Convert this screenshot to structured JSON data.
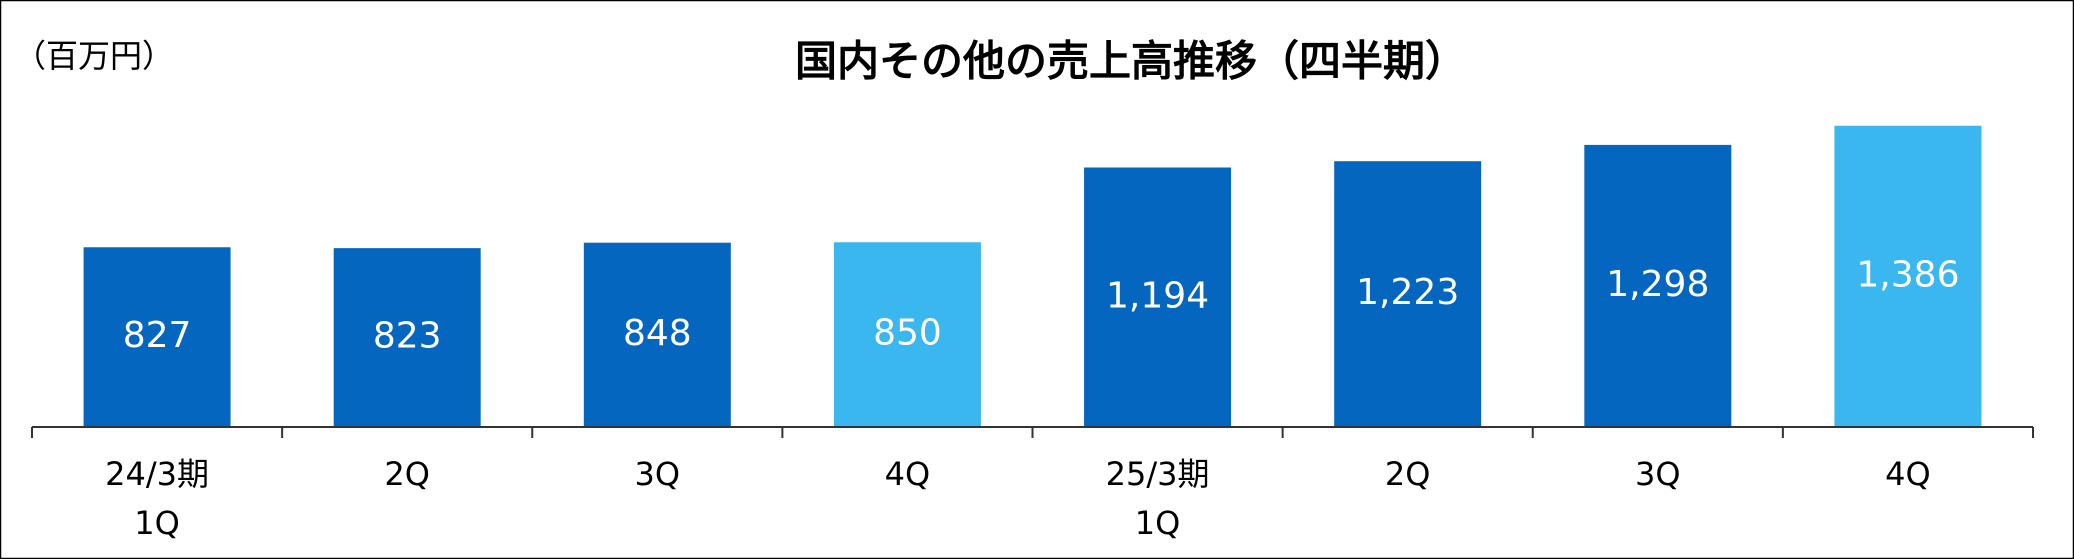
{
  "chart_data": {
    "type": "bar",
    "title": "国内その他の売上高推移（四半期）",
    "unit_label": "（百万円）",
    "categories": [
      [
        "24/3期",
        "1Q"
      ],
      [
        "2Q"
      ],
      [
        "3Q"
      ],
      [
        "4Q"
      ],
      [
        "25/3期",
        "1Q"
      ],
      [
        "2Q"
      ],
      [
        "3Q"
      ],
      [
        "4Q"
      ]
    ],
    "values": [
      827,
      823,
      848,
      850,
      1194,
      1223,
      1298,
      1386
    ],
    "value_labels": [
      "827",
      "823",
      "848",
      "850",
      "1,194",
      "1,223",
      "1,298",
      "1,386"
    ],
    "colors": [
      "#0566c0",
      "#0566c0",
      "#0566c0",
      "#3bb7ef",
      "#0566c0",
      "#0566c0",
      "#0566c0",
      "#3bb7ef"
    ],
    "ylim": [
      0,
      1500
    ],
    "grid": false
  }
}
